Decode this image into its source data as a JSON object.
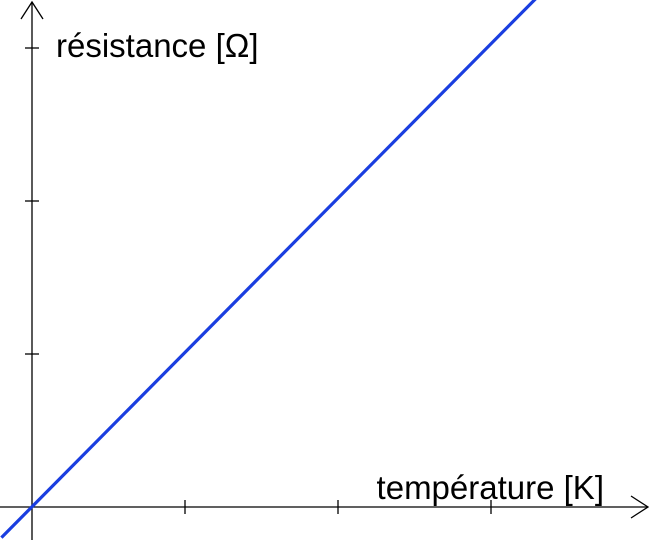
{
  "chart_data": {
    "type": "line",
    "xlabel": "température [K]",
    "ylabel": "résistance [Ω]",
    "title": "",
    "grid": false,
    "ticks_labeled": false,
    "xticks": [
      1,
      2,
      3
    ],
    "yticks": [
      1,
      2,
      3
    ],
    "xlim": [
      0,
      4
    ],
    "ylim": [
      0,
      3.3
    ],
    "series": [
      {
        "color": "#1a3ee0",
        "x": [
          -0.2,
          3.3
        ],
        "y": [
          -0.2,
          3.33
        ]
      }
    ]
  }
}
